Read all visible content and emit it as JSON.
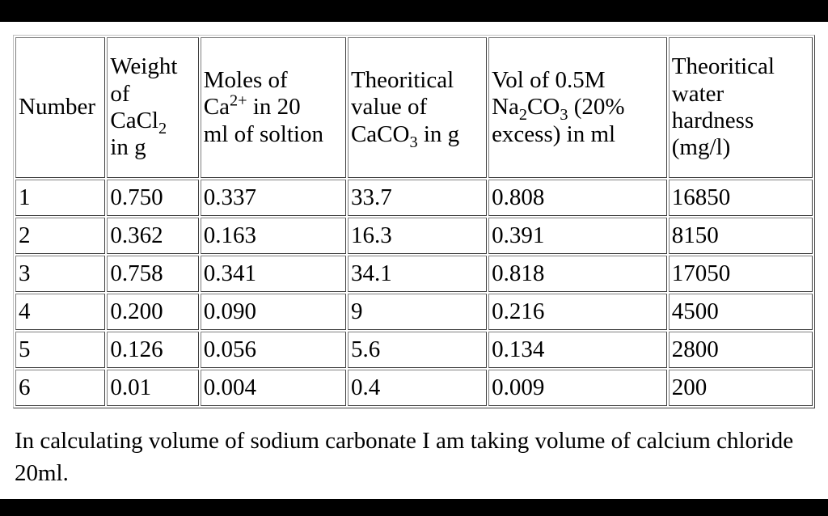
{
  "header": {
    "number": "Number",
    "weight": {
      "line1": "Weight",
      "line2": "of",
      "line3_pre": "CaCl",
      "line3_sub": "2",
      "line4": "in g"
    },
    "moles": {
      "line1": "Moles of",
      "line2_pre": "Ca",
      "line2_sup": "2+",
      "line2_post": " in 20",
      "line3": "ml of soltion"
    },
    "theoretical_caco3": {
      "line1": "Theoritical",
      "line2": "value of",
      "line3_pre": "CaCO",
      "line3_sub": "3",
      "line3_post": " in g"
    },
    "volume": {
      "line1": "Vol of 0.5M",
      "line2_pre": "Na",
      "line2_sub1": "2",
      "line2_mid": "CO",
      "line2_sub2": "3",
      "line2_post": " (20%",
      "line3": "excess) in ml"
    },
    "hardness": {
      "line1": "Theoritical",
      "line2": "water",
      "line3": "hardness",
      "line4": "(mg/l)"
    }
  },
  "rows": [
    {
      "number": "1",
      "weight": "0.750",
      "moles": "0.337",
      "caco3": "33.7",
      "volume": "0.808",
      "hardness": "16850"
    },
    {
      "number": "2",
      "weight": "0.362",
      "moles": "0.163",
      "caco3": "16.3",
      "volume": "0.391",
      "hardness": "8150"
    },
    {
      "number": "3",
      "weight": "0.758",
      "moles": "0.341",
      "caco3": "34.1",
      "volume": "0.818",
      "hardness": "17050"
    },
    {
      "number": "4",
      "weight": "0.200",
      "moles": "0.090",
      "caco3": "9",
      "volume": "0.216",
      "hardness": "4500"
    },
    {
      "number": "5",
      "weight": "0.126",
      "moles": "0.056",
      "caco3": "5.6",
      "volume": "0.134",
      "hardness": "2800"
    },
    {
      "number": "6",
      "weight": "0.01",
      "moles": "0.004",
      "caco3": "0.4",
      "volume": "0.009",
      "hardness": "200"
    }
  ],
  "footnote": "In calculating volume of sodium carbonate I am taking volume of calcium chloride 20ml."
}
